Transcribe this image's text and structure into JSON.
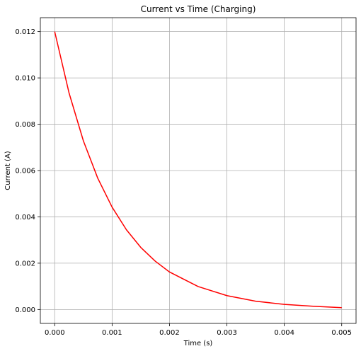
{
  "chart_data": {
    "type": "line",
    "title": "Current vs Time (Charging)",
    "xlabel": "Time (s)",
    "ylabel": "Current (A)",
    "xlim": [
      -0.00025,
      0.00525
    ],
    "ylim": [
      -0.0006,
      0.0126
    ],
    "xticks": [
      0,
      0.001,
      0.002,
      0.003,
      0.004,
      0.005
    ],
    "xtick_labels": [
      "0.000",
      "0.001",
      "0.002",
      "0.003",
      "0.004",
      "0.005"
    ],
    "yticks": [
      0,
      0.002,
      0.004,
      0.006,
      0.008,
      0.01,
      0.012
    ],
    "ytick_labels": [
      "0.000",
      "0.002",
      "0.004",
      "0.006",
      "0.008",
      "0.010",
      "0.012"
    ],
    "grid": true,
    "series": [
      {
        "color": "#ff0000",
        "x": [
          0,
          0.00025,
          0.0005,
          0.00075,
          0.001,
          0.00125,
          0.0015,
          0.00175,
          0.002,
          0.0025,
          0.003,
          0.0035,
          0.004,
          0.0045,
          0.005
        ],
        "y": [
          0.012,
          0.00935,
          0.00728,
          0.00567,
          0.00442,
          0.00344,
          0.00268,
          0.00209,
          0.00162,
          0.00099,
          0.0006,
          0.00036,
          0.00022,
          0.00014,
          8e-05
        ]
      }
    ]
  }
}
